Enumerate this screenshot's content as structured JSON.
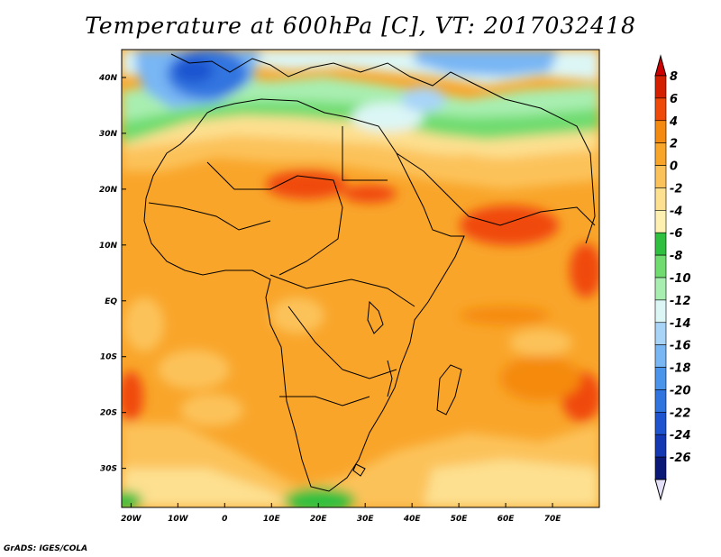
{
  "title": "Temperature at 600hPa [C], VT: 2017032418",
  "credit": "GrADS: IGES/COLA",
  "map": {
    "lon_range": [
      -22,
      80
    ],
    "lat_range": [
      -37,
      45
    ],
    "x_ticks": [
      {
        "value": -20,
        "label": "20W"
      },
      {
        "value": -10,
        "label": "10W"
      },
      {
        "value": 0,
        "label": "0"
      },
      {
        "value": 10,
        "label": "10E"
      },
      {
        "value": 20,
        "label": "20E"
      },
      {
        "value": 30,
        "label": "30E"
      },
      {
        "value": 40,
        "label": "40E"
      },
      {
        "value": 50,
        "label": "50E"
      },
      {
        "value": 60,
        "label": "60E"
      },
      {
        "value": 70,
        "label": "70E"
      }
    ],
    "y_ticks": [
      {
        "value": 40,
        "label": "40N"
      },
      {
        "value": 30,
        "label": "30N"
      },
      {
        "value": 20,
        "label": "20N"
      },
      {
        "value": 10,
        "label": "10N"
      },
      {
        "value": 0,
        "label": "EQ"
      },
      {
        "value": -10,
        "label": "10S"
      },
      {
        "value": -20,
        "label": "20S"
      },
      {
        "value": -30,
        "label": "30S"
      }
    ]
  },
  "colorbar": {
    "levels": [
      {
        "label": "8",
        "color": "#d42000"
      },
      {
        "label": "6",
        "color": "#f04a0a"
      },
      {
        "label": "4",
        "color": "#f58a10"
      },
      {
        "label": "2",
        "color": "#f9a52a"
      },
      {
        "label": "0",
        "color": "#fcc25a"
      },
      {
        "label": "-2",
        "color": "#fde090"
      },
      {
        "label": "-4",
        "color": "#fdf0b0"
      },
      {
        "label": "-6",
        "color": "#30c040"
      },
      {
        "label": "-8",
        "color": "#70dc70"
      },
      {
        "label": "-10",
        "color": "#a8eeb0"
      },
      {
        "label": "-12",
        "color": "#dcf6f6"
      },
      {
        "label": "-14",
        "color": "#a8d4f8"
      },
      {
        "label": "-16",
        "color": "#78b6f4"
      },
      {
        "label": "-18",
        "color": "#4a94ec"
      },
      {
        "label": "-20",
        "color": "#3074e0"
      },
      {
        "label": "-22",
        "color": "#1e54d0"
      },
      {
        "label": "-24",
        "color": "#1438b4"
      },
      {
        "label": "-26",
        "color": "#0a1878"
      }
    ],
    "top_arrow_color": "#cc0000",
    "bottom_arrow_color": "#e4e0f8"
  }
}
